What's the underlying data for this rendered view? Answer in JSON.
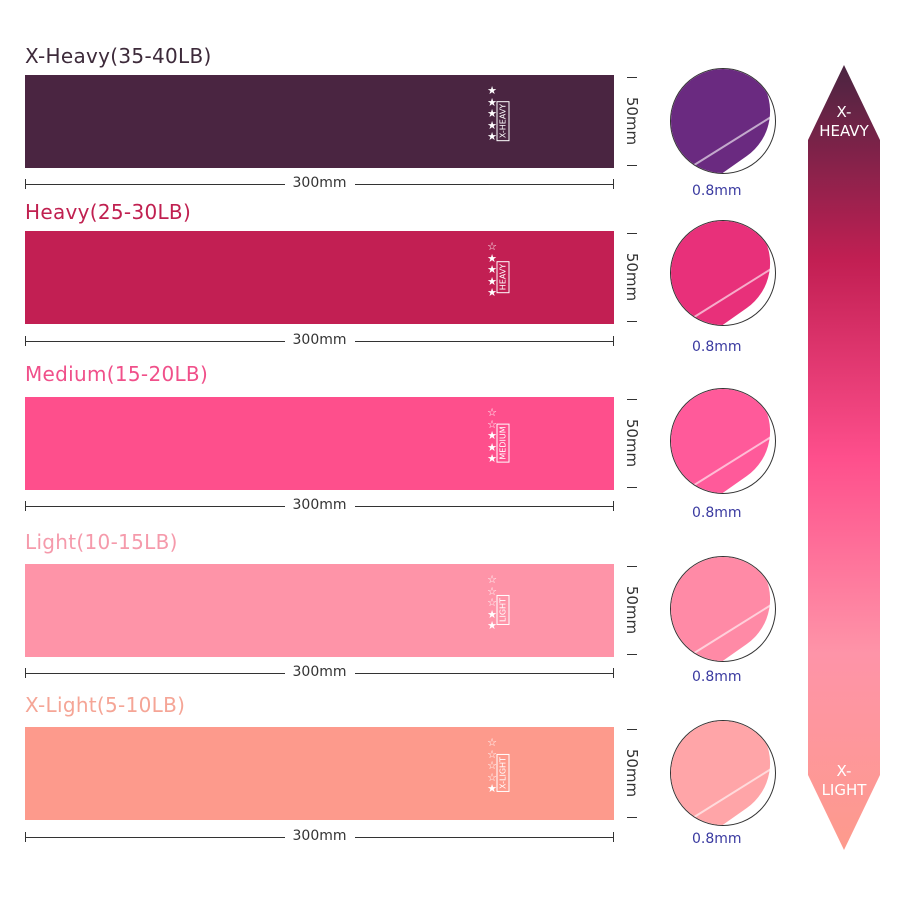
{
  "rows": [
    {
      "title": "X-Heavy(35-40LB)",
      "tag": "X-HEAVY",
      "stars": 5,
      "length": "300mm",
      "width": "50mm",
      "thickness": "0.8mm",
      "band_color": "#4a2541",
      "title_color": "#3d2a3a",
      "fold_color": "#6a2a80"
    },
    {
      "title": "Heavy(25-30LB)",
      "tag": "HEAVY",
      "stars": 4,
      "length": "300mm",
      "width": "50mm",
      "thickness": "0.8mm",
      "band_color": "#c21f53",
      "title_color": "#c02050",
      "fold_color": "#e8307a"
    },
    {
      "title": "Medium(15-20LB)",
      "tag": "MEDIUM",
      "stars": 3,
      "length": "300mm",
      "width": "50mm",
      "thickness": "0.8mm",
      "band_color": "#fe4f8c",
      "title_color": "#f0508a",
      "fold_color": "#ff5a9a"
    },
    {
      "title": "Light(10-15LB)",
      "tag": "LIGHT",
      "stars": 2,
      "length": "300mm",
      "width": "50mm",
      "thickness": "0.8mm",
      "band_color": "#fe94a8",
      "title_color": "#f59aab",
      "fold_color": "#ff8aa6"
    },
    {
      "title": "X-Light(5-10LB)",
      "tag": "X-LIGHT",
      "stars": 1,
      "length": "300mm",
      "width": "50mm",
      "thickness": "0.8mm",
      "band_color": "#fd9a8c",
      "title_color": "#f5a596",
      "fold_color": "#ffa5a8"
    }
  ],
  "stars_max": 5,
  "scale": {
    "top_label": "X-\nHEAVY",
    "bottom_label": "X-\nLIGHT",
    "gradient": [
      "#4a2541",
      "#c21f53",
      "#fe4f8c",
      "#fe94a8",
      "#fd9a8c"
    ]
  }
}
